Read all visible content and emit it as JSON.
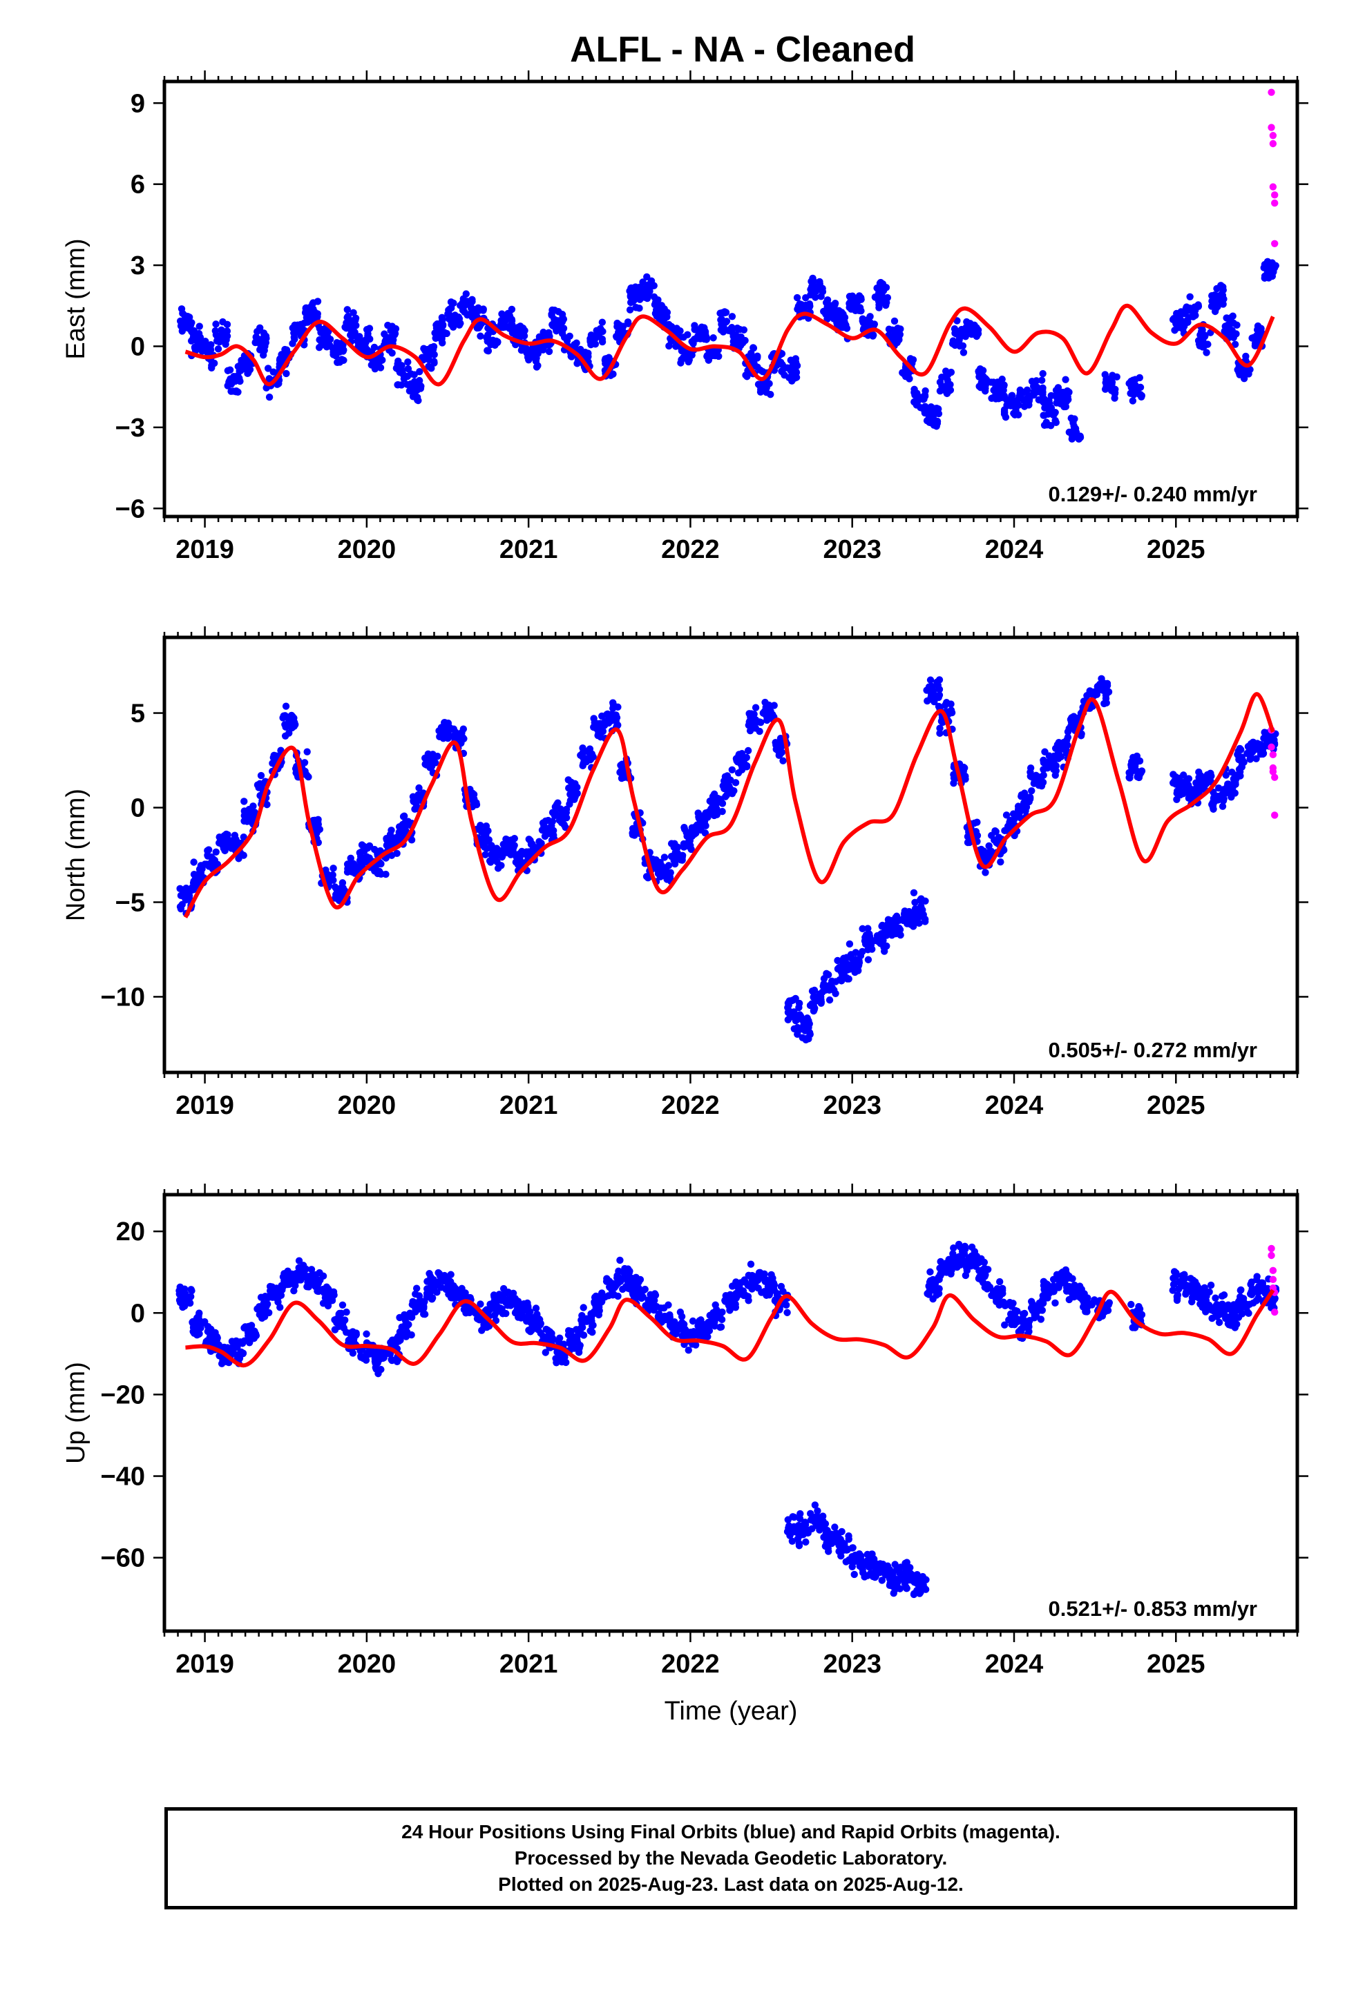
{
  "title": "ALFL  - NA - Cleaned",
  "colors": {
    "final": "#0000ff",
    "rapid": "#ff00ff",
    "model": "#ff0000",
    "frame": "#000000"
  },
  "caption": [
    "24 Hour Positions Using Final Orbits (blue) and Rapid Orbits (magenta).",
    "Processed by the Nevada Geodetic Laboratory.",
    "Plotted on 2025-Aug-23. Last data on 2025-Aug-12."
  ],
  "chart_data": [
    {
      "type": "scatter",
      "ylabel": "East (mm)",
      "xlabel": "",
      "xlim": [
        2018.75,
        2025.75
      ],
      "ylim": [
        -6.3,
        9.8
      ],
      "x_ticks": [
        2019,
        2020,
        2021,
        2022,
        2023,
        2024,
        2025
      ],
      "y_ticks": [
        -6,
        -3,
        0,
        3,
        6,
        9
      ],
      "rate": "0.129+/- 0.240 mm/yr",
      "series": [
        {
          "kind": "final",
          "x": [
            2018.88,
            2018.95,
            2019.02,
            2019.1,
            2019.18,
            2019.26,
            2019.34,
            2019.42,
            2019.5,
            2019.58,
            2019.66,
            2019.74,
            2019.82,
            2019.9,
            2019.98,
            2020.06,
            2020.14,
            2020.22,
            2020.3,
            2020.38,
            2020.46,
            2020.54,
            2020.62,
            2020.7,
            2020.78,
            2020.86,
            2020.94,
            2021.02,
            2021.1,
            2021.18,
            2021.26,
            2021.34,
            2021.42,
            2021.5,
            2021.58,
            2021.66,
            2021.74,
            2021.82,
            2021.9,
            2021.98,
            2022.06,
            2022.14,
            2022.22,
            2022.3,
            2022.38,
            2022.46,
            2022.54,
            2022.62,
            2022.7,
            2022.78,
            2022.86,
            2022.94,
            2023.02,
            2023.1,
            2023.18,
            2023.26,
            2023.34,
            2023.42,
            2023.5,
            2023.58,
            2023.66,
            2023.74,
            2023.82,
            2023.9,
            2023.98,
            2024.06,
            2024.14,
            2024.22,
            2024.3,
            2024.38,
            2024.6,
            2024.75,
            2025.02,
            2025.1,
            2025.18,
            2025.26,
            2025.34,
            2025.42,
            2025.5,
            2025.58
          ],
          "y": [
            0.9,
            0.2,
            -0.3,
            0.4,
            -1.2,
            -0.6,
            0.1,
            -1.3,
            -0.4,
            0.6,
            1.2,
            0.4,
            -0.2,
            0.8,
            0.2,
            -0.5,
            0.3,
            -0.9,
            -1.5,
            -0.3,
            0.5,
            1.1,
            1.6,
            0.9,
            0.2,
            1.0,
            0.3,
            -0.4,
            0.2,
            0.8,
            -0.1,
            -0.6,
            0.4,
            -0.8,
            0.6,
            1.8,
            2.1,
            1.2,
            0.4,
            -0.2,
            0.5,
            -0.3,
            0.9,
            0.3,
            -0.6,
            -1.4,
            -0.5,
            -0.9,
            1.5,
            2.2,
            1.4,
            0.8,
            1.6,
            0.7,
            1.9,
            0.4,
            -0.8,
            -1.9,
            -2.6,
            -1.5,
            0.4,
            0.6,
            -1.2,
            -1.6,
            -2.2,
            -2.0,
            -1.6,
            -2.4,
            -1.8,
            -3.2,
            -1.5,
            -1.5,
            0.9,
            1.3,
            0.4,
            1.8,
            0.6,
            -0.7,
            0.4,
            2.8
          ]
        },
        {
          "kind": "rapid",
          "x": [
            2025.59,
            2025.59,
            2025.6,
            2025.6,
            2025.6,
            2025.61,
            2025.61,
            2025.61
          ],
          "y": [
            9.4,
            8.1,
            7.8,
            7.5,
            5.9,
            5.3,
            3.8,
            5.6
          ]
        },
        {
          "kind": "model",
          "x": [
            2018.88,
            2019.0,
            2019.1,
            2019.2,
            2019.3,
            2019.4,
            2019.55,
            2019.7,
            2019.85,
            2020.0,
            2020.15,
            2020.3,
            2020.45,
            2020.6,
            2020.7,
            2020.85,
            2021.0,
            2021.15,
            2021.3,
            2021.45,
            2021.6,
            2021.7,
            2021.85,
            2022.0,
            2022.15,
            2022.3,
            2022.45,
            2022.6,
            2022.7,
            2022.85,
            2023.0,
            2023.15,
            2023.3,
            2023.45,
            2023.6,
            2023.7,
            2023.85,
            2024.0,
            2024.15,
            2024.3,
            2024.45,
            2024.6,
            2024.7,
            2024.85,
            2025.0,
            2025.15,
            2025.3,
            2025.45,
            2025.6
          ],
          "y": [
            -0.2,
            -0.4,
            -0.3,
            0.0,
            -0.5,
            -1.4,
            -0.2,
            0.9,
            0.3,
            -0.4,
            0.0,
            -0.4,
            -1.4,
            0.2,
            1.0,
            0.4,
            0.1,
            0.2,
            -0.3,
            -1.2,
            0.3,
            1.1,
            0.6,
            -0.1,
            0.0,
            -0.2,
            -1.2,
            0.6,
            1.2,
            0.8,
            0.3,
            0.6,
            -0.4,
            -1.0,
            0.8,
            1.4,
            0.7,
            -0.2,
            0.5,
            0.3,
            -1.0,
            0.6,
            1.5,
            0.5,
            0.1,
            0.8,
            0.3,
            -0.7,
            1.1
          ]
        }
      ]
    },
    {
      "type": "scatter",
      "ylabel": "North (mm)",
      "xlabel": "",
      "xlim": [
        2018.75,
        2025.75
      ],
      "ylim": [
        -14,
        9
      ],
      "x_ticks": [
        2019,
        2020,
        2021,
        2022,
        2023,
        2024,
        2025
      ],
      "y_ticks": [
        -10,
        -5,
        0,
        5
      ],
      "rate": "0.505+/- 0.272 mm/yr",
      "series": [
        {
          "kind": "final",
          "x": [
            2018.88,
            2018.96,
            2019.04,
            2019.12,
            2019.2,
            2019.28,
            2019.36,
            2019.44,
            2019.52,
            2019.6,
            2019.68,
            2019.76,
            2019.84,
            2019.92,
            2020.0,
            2020.08,
            2020.16,
            2020.24,
            2020.32,
            2020.4,
            2020.48,
            2020.56,
            2020.64,
            2020.72,
            2020.8,
            2020.88,
            2020.96,
            2021.04,
            2021.12,
            2021.2,
            2021.28,
            2021.36,
            2021.44,
            2021.52,
            2021.6,
            2021.68,
            2021.76,
            2021.84,
            2021.92,
            2022.0,
            2022.08,
            2022.16,
            2022.24,
            2022.32,
            2022.4,
            2022.48,
            2022.56,
            2022.64,
            2022.7,
            2022.78,
            2022.86,
            2022.94,
            2023.02,
            2023.1,
            2023.18,
            2023.26,
            2023.34,
            2023.42,
            2023.5,
            2023.58,
            2023.66,
            2023.74,
            2023.82,
            2023.9,
            2023.98,
            2024.06,
            2024.14,
            2024.22,
            2024.3,
            2024.38,
            2024.46,
            2024.55,
            2024.75,
            2025.02,
            2025.1,
            2025.18,
            2025.26,
            2025.34,
            2025.42,
            2025.5,
            2025.58
          ],
          "y": [
            -4.8,
            -3.6,
            -2.9,
            -1.8,
            -2.2,
            -0.5,
            0.8,
            2.4,
            4.6,
            2.1,
            -1.2,
            -3.8,
            -4.5,
            -3.2,
            -2.6,
            -2.9,
            -1.8,
            -1.2,
            0.4,
            2.3,
            4.1,
            3.6,
            0.5,
            -1.6,
            -2.4,
            -2.1,
            -2.9,
            -2.2,
            -1.1,
            -0.4,
            0.8,
            2.6,
            4.3,
            4.9,
            2.0,
            -1.0,
            -3.2,
            -3.5,
            -2.4,
            -1.6,
            -0.6,
            0.2,
            1.1,
            2.4,
            4.5,
            5.1,
            3.2,
            -10.8,
            -11.5,
            -10.2,
            -9.4,
            -8.6,
            -8.1,
            -7.2,
            -6.8,
            -6.2,
            -5.9,
            -5.4,
            6.1,
            4.8,
            1.8,
            -1.4,
            -2.8,
            -1.9,
            -0.9,
            0.2,
            1.4,
            2.3,
            3.1,
            4.4,
            5.6,
            6.2,
            2.0,
            1.1,
            0.8,
            1.4,
            0.6,
            1.2,
            2.4,
            3.1,
            3.6
          ]
        },
        {
          "kind": "rapid",
          "x": [
            2025.59,
            2025.59,
            2025.6,
            2025.6,
            2025.6,
            2025.61,
            2025.61
          ],
          "y": [
            4.1,
            3.2,
            2.8,
            2.1,
            1.9,
            1.6,
            -0.4
          ]
        },
        {
          "kind": "model",
          "x": [
            2018.88,
            2019.0,
            2019.15,
            2019.3,
            2019.4,
            2019.55,
            2019.65,
            2019.8,
            2019.95,
            2020.1,
            2020.25,
            2020.4,
            2020.55,
            2020.65,
            2020.8,
            2020.95,
            2021.1,
            2021.25,
            2021.4,
            2021.55,
            2021.65,
            2021.8,
            2021.95,
            2022.1,
            2022.25,
            2022.4,
            2022.55,
            2022.65,
            2022.8,
            2022.95,
            2023.1,
            2023.25,
            2023.4,
            2023.55,
            2023.65,
            2023.8,
            2023.95,
            2024.1,
            2024.25,
            2024.4,
            2024.5,
            2024.65,
            2024.8,
            2024.95,
            2025.1,
            2025.25,
            2025.4,
            2025.5,
            2025.6
          ],
          "y": [
            -5.8,
            -3.9,
            -2.8,
            -1.2,
            1.4,
            3.1,
            -1.0,
            -5.2,
            -3.6,
            -2.5,
            -1.6,
            1.2,
            3.4,
            -0.8,
            -4.8,
            -3.4,
            -2.1,
            -1.2,
            2.0,
            4.1,
            0.4,
            -4.3,
            -3.3,
            -1.6,
            -0.9,
            2.4,
            4.6,
            0.3,
            -3.9,
            -1.8,
            -0.8,
            -0.4,
            2.8,
            5.1,
            2.0,
            -3.0,
            -1.6,
            -0.4,
            0.4,
            4.2,
            5.6,
            1.3,
            -2.8,
            -0.7,
            0.2,
            1.4,
            4.0,
            6.0,
            4.0
          ]
        }
      ]
    },
    {
      "type": "scatter",
      "ylabel": "Up (mm)",
      "xlabel": "Time (year)",
      "xlim": [
        2018.75,
        2025.75
      ],
      "ylim": [
        -78,
        29
      ],
      "x_ticks": [
        2019,
        2020,
        2021,
        2022,
        2023,
        2024,
        2025
      ],
      "y_ticks": [
        -60,
        -40,
        -20,
        0,
        20
      ],
      "rate": "0.521+/- 0.853 mm/yr",
      "series": [
        {
          "kind": "final",
          "x": [
            2018.88,
            2018.96,
            2019.04,
            2019.12,
            2019.2,
            2019.28,
            2019.36,
            2019.44,
            2019.52,
            2019.6,
            2019.68,
            2019.76,
            2019.84,
            2019.92,
            2020.0,
            2020.08,
            2020.16,
            2020.24,
            2020.32,
            2020.4,
            2020.48,
            2020.56,
            2020.64,
            2020.72,
            2020.8,
            2020.88,
            2020.96,
            2021.04,
            2021.12,
            2021.2,
            2021.28,
            2021.36,
            2021.44,
            2021.52,
            2021.6,
            2021.68,
            2021.76,
            2021.84,
            2021.92,
            2022.0,
            2022.08,
            2022.16,
            2022.24,
            2022.32,
            2022.4,
            2022.48,
            2022.56,
            2022.64,
            2022.7,
            2022.78,
            2022.86,
            2022.94,
            2023.02,
            2023.1,
            2023.18,
            2023.26,
            2023.34,
            2023.42,
            2023.5,
            2023.58,
            2023.66,
            2023.74,
            2023.82,
            2023.9,
            2023.98,
            2024.06,
            2024.14,
            2024.22,
            2024.3,
            2024.38,
            2024.46,
            2024.55,
            2024.75,
            2025.02,
            2025.1,
            2025.18,
            2025.26,
            2025.34,
            2025.42,
            2025.5,
            2025.58
          ],
          "y": [
            4.0,
            -2.5,
            -6.8,
            -10.2,
            -8.4,
            -4.6,
            1.2,
            4.8,
            7.9,
            9.6,
            8.1,
            4.4,
            -1.8,
            -6.5,
            -9.8,
            -11.4,
            -8.7,
            -3.2,
            2.5,
            6.3,
            7.8,
            4.9,
            1.6,
            -0.6,
            1.8,
            3.4,
            0.9,
            -2.8,
            -6.7,
            -9.1,
            -7.4,
            -2.1,
            3.4,
            7.2,
            8.6,
            6.1,
            2.4,
            -0.8,
            -3.5,
            -5.2,
            -4.1,
            -1.2,
            2.3,
            5.4,
            7.8,
            6.4,
            2.9,
            -52.4,
            -54.1,
            -50.8,
            -55.6,
            -57.2,
            -59.8,
            -61.5,
            -63.2,
            -65.1,
            -64.3,
            -66.8,
            6.2,
            10.4,
            13.8,
            12.5,
            9.7,
            4.2,
            -0.3,
            -2.8,
            1.5,
            5.4,
            8.1,
            5.2,
            2.4,
            1.1,
            -0.5,
            7.6,
            5.8,
            3.2,
            1.4,
            -1.8,
            2.6,
            5.9,
            4.1
          ]
        },
        {
          "kind": "rapid",
          "x": [
            2025.59,
            2025.59,
            2025.6,
            2025.6,
            2025.6,
            2025.61,
            2025.61
          ],
          "y": [
            15.8,
            14.1,
            10.4,
            8.2,
            6.1,
            5.0,
            0.2
          ]
        },
        {
          "kind": "model",
          "x": [
            2018.88,
            2019.0,
            2019.1,
            2019.25,
            2019.4,
            2019.55,
            2019.7,
            2019.85,
            2020.0,
            2020.15,
            2020.3,
            2020.45,
            2020.6,
            2020.75,
            2020.9,
            2021.05,
            2021.2,
            2021.35,
            2021.5,
            2021.6,
            2021.75,
            2021.9,
            2022.05,
            2022.2,
            2022.35,
            2022.5,
            2022.6,
            2022.75,
            2022.9,
            2023.05,
            2023.2,
            2023.35,
            2023.5,
            2023.6,
            2023.75,
            2023.9,
            2024.05,
            2024.2,
            2024.35,
            2024.5,
            2024.6,
            2024.75,
            2024.9,
            2025.05,
            2025.2,
            2025.35,
            2025.5,
            2025.6
          ],
          "y": [
            -8.5,
            -8.2,
            -9.5,
            -12.8,
            -6.5,
            2.4,
            -1.8,
            -7.8,
            -8.1,
            -8.9,
            -12.4,
            -5.2,
            2.8,
            -1.5,
            -7.1,
            -7.4,
            -8.6,
            -11.6,
            -3.8,
            3.2,
            -1.0,
            -6.4,
            -6.8,
            -8.1,
            -11.2,
            -1.2,
            4.1,
            -2.6,
            -6.3,
            -6.5,
            -7.9,
            -10.8,
            -3.5,
            4.3,
            -1.6,
            -5.8,
            -5.6,
            -7.0,
            -10.2,
            -1.2,
            5.2,
            -1.8,
            -5.1,
            -4.9,
            -6.4,
            -9.9,
            -0.5,
            5.6
          ]
        }
      ]
    }
  ]
}
